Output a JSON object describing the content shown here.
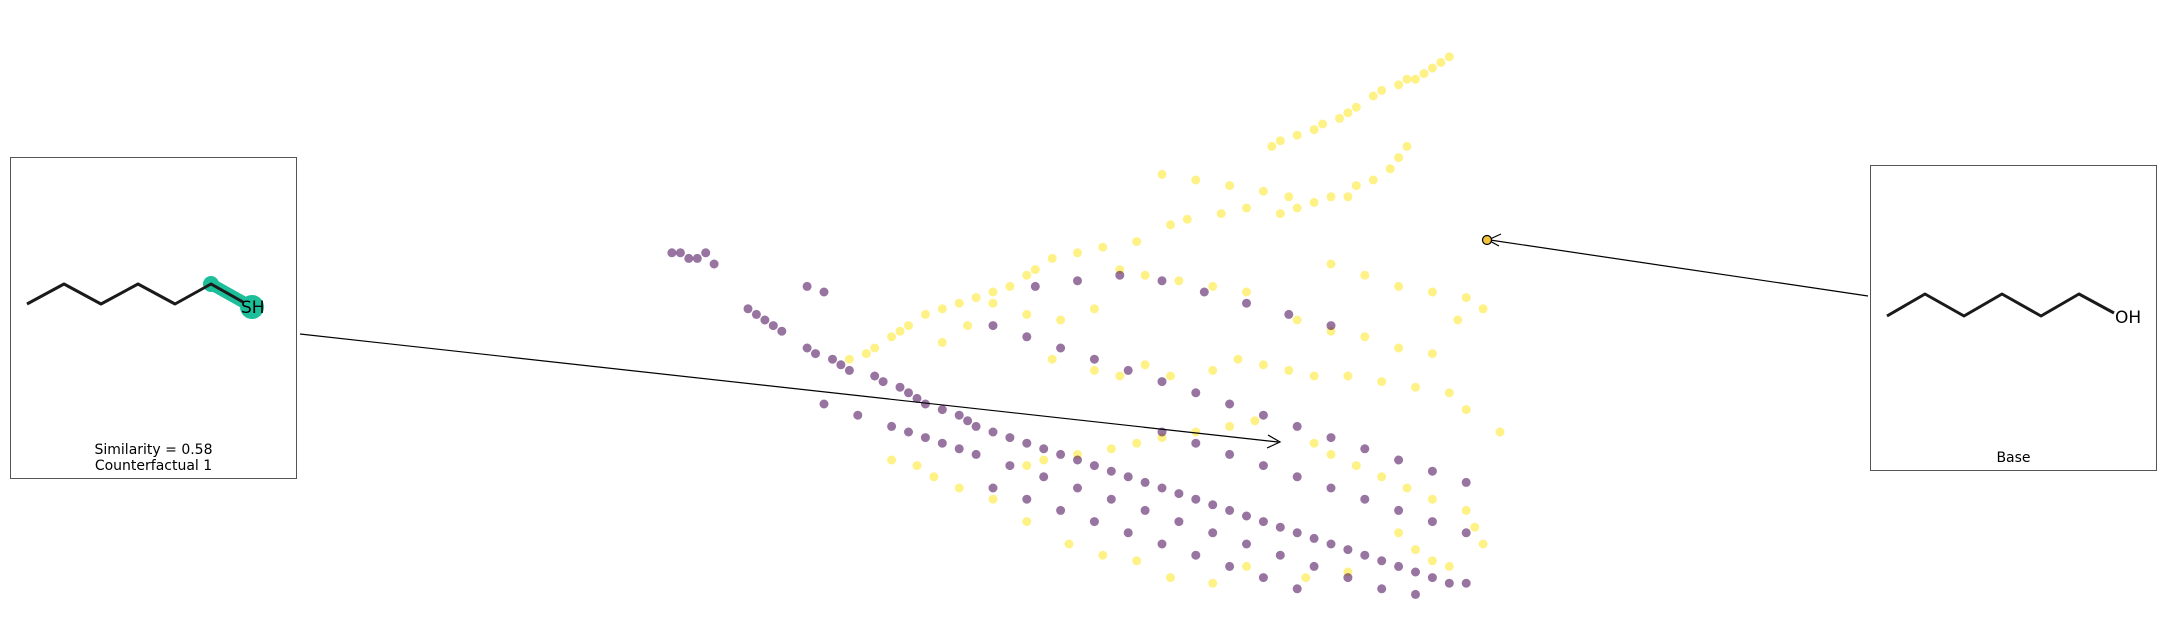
{
  "colors": {
    "class_high": "#fde725",
    "class_low": "#440154",
    "highlight": "#1dbe9a",
    "bond": "#1a1a1a",
    "base_marker_fill": "#f2c43c"
  },
  "panels": {
    "counterfactual": {
      "smiles_label": "SH",
      "similarity": "Similarity = 0.58",
      "title": "Counterfactual 1"
    },
    "base": {
      "smiles_label": "OH",
      "title": "Base"
    }
  },
  "chart_data": {
    "type": "scatter",
    "title": "",
    "xlabel": "",
    "ylabel": "",
    "axes_visible": false,
    "grid": false,
    "xlim": [
      0,
      100
    ],
    "ylim": [
      0,
      100
    ],
    "series": [
      {
        "class": 1,
        "color": "#fde725",
        "points": [
          [
            94,
            97
          ],
          [
            93,
            96
          ],
          [
            92,
            95
          ],
          [
            91,
            94
          ],
          [
            90,
            93
          ],
          [
            89,
            93
          ],
          [
            88,
            92
          ],
          [
            86,
            91
          ],
          [
            85,
            90
          ],
          [
            83,
            88
          ],
          [
            82,
            87
          ],
          [
            81,
            86
          ],
          [
            79,
            85
          ],
          [
            78,
            84
          ],
          [
            76,
            83
          ],
          [
            74,
            82
          ],
          [
            73,
            81
          ],
          [
            89,
            81
          ],
          [
            88,
            79
          ],
          [
            87,
            77
          ],
          [
            85,
            75
          ],
          [
            83,
            74
          ],
          [
            82,
            72
          ],
          [
            80,
            72
          ],
          [
            78,
            71
          ],
          [
            76,
            70
          ],
          [
            74,
            69
          ],
          [
            70,
            70
          ],
          [
            67,
            69
          ],
          [
            63,
            68
          ],
          [
            61,
            67
          ],
          [
            57,
            64
          ],
          [
            53,
            63
          ],
          [
            50,
            62
          ],
          [
            47,
            61
          ],
          [
            45,
            59
          ],
          [
            44,
            58
          ],
          [
            42,
            56
          ],
          [
            40,
            55
          ],
          [
            38,
            54
          ],
          [
            36,
            53
          ],
          [
            34,
            52
          ],
          [
            32,
            51
          ],
          [
            30,
            49
          ],
          [
            29,
            48
          ],
          [
            28,
            47
          ],
          [
            26,
            45
          ],
          [
            25,
            44
          ],
          [
            23,
            43
          ],
          [
            47,
            43
          ],
          [
            52,
            41
          ],
          [
            55,
            40
          ],
          [
            58,
            42
          ],
          [
            61,
            40
          ],
          [
            66,
            41
          ],
          [
            69,
            43
          ],
          [
            72,
            42
          ],
          [
            75,
            41
          ],
          [
            78,
            40
          ],
          [
            82,
            40
          ],
          [
            86,
            39
          ],
          [
            90,
            38
          ],
          [
            94,
            37
          ],
          [
            96,
            34
          ],
          [
            100,
            30
          ],
          [
            71,
            32
          ],
          [
            68,
            31
          ],
          [
            64,
            30
          ],
          [
            60,
            29
          ],
          [
            57,
            28
          ],
          [
            54,
            27
          ],
          [
            50,
            26
          ],
          [
            46,
            25
          ],
          [
            44,
            24
          ],
          [
            78,
            28
          ],
          [
            80,
            26
          ],
          [
            83,
            24
          ],
          [
            86,
            22
          ],
          [
            89,
            20
          ],
          [
            92,
            18
          ],
          [
            96,
            16
          ],
          [
            88,
            12
          ],
          [
            90,
            9
          ],
          [
            92,
            7
          ],
          [
            94,
            6
          ],
          [
            97,
            13
          ],
          [
            98,
            10
          ],
          [
            82,
            5
          ],
          [
            77,
            4
          ],
          [
            70,
            6
          ],
          [
            66,
            3
          ],
          [
            61,
            4
          ],
          [
            57,
            7
          ],
          [
            53,
            8
          ],
          [
            49,
            10
          ],
          [
            44,
            14
          ],
          [
            40,
            18
          ],
          [
            36,
            20
          ],
          [
            33,
            22
          ],
          [
            31,
            24
          ],
          [
            28,
            25
          ],
          [
            60,
            76
          ],
          [
            64,
            75
          ],
          [
            68,
            74
          ],
          [
            72,
            73
          ],
          [
            75,
            72
          ],
          [
            80,
            60
          ],
          [
            84,
            58
          ],
          [
            88,
            56
          ],
          [
            92,
            55
          ],
          [
            96,
            54
          ],
          [
            70,
            55
          ],
          [
            66,
            56
          ],
          [
            62,
            57
          ],
          [
            58,
            58
          ],
          [
            55,
            59
          ],
          [
            52,
            52
          ],
          [
            48,
            50
          ],
          [
            44,
            51
          ],
          [
            40,
            53
          ],
          [
            37,
            49
          ],
          [
            34,
            46
          ],
          [
            76,
            50
          ],
          [
            80,
            48
          ],
          [
            84,
            47
          ],
          [
            88,
            45
          ],
          [
            92,
            44
          ],
          [
            95,
            50
          ],
          [
            98,
            52
          ]
        ]
      },
      {
        "class": 0,
        "color": "#440154",
        "points": [
          [
            2,
            62
          ],
          [
            3,
            62
          ],
          [
            4,
            61
          ],
          [
            5,
            61
          ],
          [
            6,
            62
          ],
          [
            7,
            60
          ],
          [
            11,
            52
          ],
          [
            12,
            51
          ],
          [
            13,
            50
          ],
          [
            14,
            49
          ],
          [
            15,
            48
          ],
          [
            18,
            45
          ],
          [
            19,
            44
          ],
          [
            21,
            43
          ],
          [
            22,
            42
          ],
          [
            23,
            41
          ],
          [
            26,
            40
          ],
          [
            27,
            39
          ],
          [
            29,
            38
          ],
          [
            30,
            37
          ],
          [
            31,
            36
          ],
          [
            32,
            35
          ],
          [
            34,
            34
          ],
          [
            36,
            33
          ],
          [
            37,
            32
          ],
          [
            38,
            31
          ],
          [
            40,
            30
          ],
          [
            42,
            29
          ],
          [
            44,
            28
          ],
          [
            46,
            27
          ],
          [
            48,
            26
          ],
          [
            50,
            25
          ],
          [
            52,
            24
          ],
          [
            54,
            23
          ],
          [
            56,
            22
          ],
          [
            58,
            21
          ],
          [
            60,
            20
          ],
          [
            62,
            19
          ],
          [
            64,
            18
          ],
          [
            66,
            17
          ],
          [
            68,
            16
          ],
          [
            70,
            15
          ],
          [
            72,
            14
          ],
          [
            74,
            13
          ],
          [
            76,
            12
          ],
          [
            78,
            11
          ],
          [
            80,
            10
          ],
          [
            82,
            9
          ],
          [
            84,
            8
          ],
          [
            86,
            7
          ],
          [
            88,
            6
          ],
          [
            90,
            5
          ],
          [
            92,
            4
          ],
          [
            94,
            3
          ],
          [
            96,
            3
          ],
          [
            18,
            56
          ],
          [
            20,
            55
          ],
          [
            45,
            56
          ],
          [
            50,
            57
          ],
          [
            55,
            58
          ],
          [
            60,
            57
          ],
          [
            65,
            55
          ],
          [
            70,
            53
          ],
          [
            75,
            51
          ],
          [
            80,
            49
          ],
          [
            40,
            49
          ],
          [
            44,
            47
          ],
          [
            48,
            45
          ],
          [
            52,
            43
          ],
          [
            56,
            41
          ],
          [
            60,
            39
          ],
          [
            64,
            37
          ],
          [
            68,
            35
          ],
          [
            72,
            33
          ],
          [
            76,
            31
          ],
          [
            80,
            29
          ],
          [
            84,
            27
          ],
          [
            88,
            25
          ],
          [
            92,
            23
          ],
          [
            96,
            21
          ],
          [
            30,
            30
          ],
          [
            34,
            28
          ],
          [
            38,
            26
          ],
          [
            42,
            24
          ],
          [
            46,
            22
          ],
          [
            50,
            20
          ],
          [
            54,
            18
          ],
          [
            58,
            16
          ],
          [
            62,
            14
          ],
          [
            66,
            12
          ],
          [
            70,
            10
          ],
          [
            74,
            8
          ],
          [
            78,
            6
          ],
          [
            82,
            4
          ],
          [
            86,
            2
          ],
          [
            90,
            1
          ],
          [
            40,
            20
          ],
          [
            44,
            18
          ],
          [
            48,
            16
          ],
          [
            52,
            14
          ],
          [
            56,
            12
          ],
          [
            60,
            10
          ],
          [
            64,
            8
          ],
          [
            68,
            6
          ],
          [
            72,
            4
          ],
          [
            76,
            2
          ],
          [
            20,
            35
          ],
          [
            24,
            33
          ],
          [
            28,
            31
          ],
          [
            32,
            29
          ],
          [
            36,
            27
          ],
          [
            60,
            30
          ],
          [
            64,
            28
          ],
          [
            68,
            26
          ],
          [
            72,
            24
          ],
          [
            76,
            22
          ],
          [
            80,
            20
          ],
          [
            84,
            18
          ],
          [
            88,
            16
          ],
          [
            92,
            14
          ],
          [
            96,
            12
          ]
        ]
      }
    ],
    "annotations": [
      {
        "label": "Counterfactual 1",
        "target_class": 0,
        "x": 96,
        "y": 31
      },
      {
        "label": "Base",
        "target_class": 1,
        "x": 122,
        "y": 63
      }
    ]
  }
}
